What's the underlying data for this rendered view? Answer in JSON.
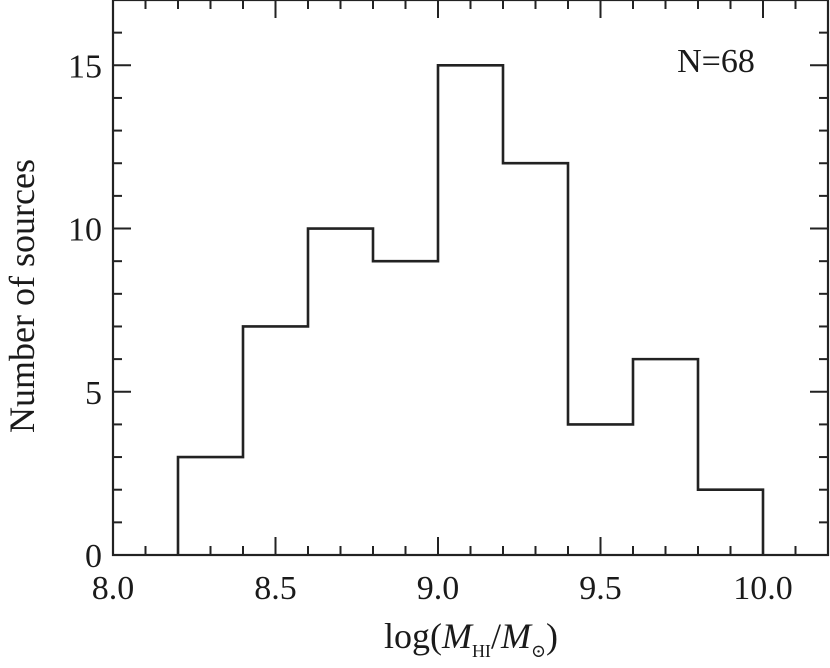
{
  "chart_data": {
    "type": "bar",
    "style": "step-histogram",
    "title": "",
    "annotation": "N=68",
    "xlabel": {
      "prefix": "log(",
      "num_symbol": "M",
      "num_sub": "HI",
      "separator": "/",
      "den_symbol": "M",
      "den_sub": "⊙",
      "suffix": ")"
    },
    "ylabel": "Number of sources",
    "xlim": [
      8.0,
      10.2
    ],
    "ylim": [
      0,
      17
    ],
    "x_ticks": [
      8.0,
      8.5,
      9.0,
      9.5,
      10.0
    ],
    "x_tick_labels": [
      "8.0",
      "8.5",
      "9.0",
      "9.5",
      "10.0"
    ],
    "y_ticks": [
      0,
      5,
      10,
      15
    ],
    "y_tick_labels": [
      "0",
      "5",
      "10",
      "15"
    ],
    "bin_edges": [
      8.2,
      8.4,
      8.6,
      8.8,
      9.0,
      9.2,
      9.4,
      9.6,
      9.8,
      10.0
    ],
    "counts": [
      3,
      7,
      10,
      9,
      15,
      12,
      4,
      6,
      2
    ],
    "grid": false,
    "colors": {
      "line": "#222222",
      "axis": "#222222"
    }
  }
}
